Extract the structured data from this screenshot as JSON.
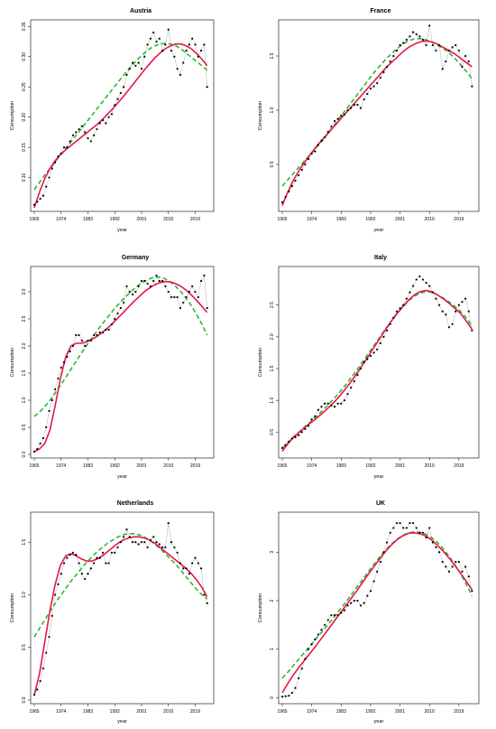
{
  "colors": {
    "fit_line": "#e8154b",
    "smooth_line": "#2db82d",
    "points": "#000000",
    "thin_line": "#b0b0b0"
  },
  "chart_data": [
    {
      "type": "scatter",
      "title": "Austria",
      "xlabel": "year",
      "ylabel": "Consumption",
      "xlim": [
        1965,
        2024
      ],
      "ylim": [
        0.05,
        0.355
      ],
      "xticks": [
        1965,
        1974,
        1983,
        1992,
        2001,
        2010,
        2019
      ],
      "yticks": [
        0.1,
        0.15,
        0.2,
        0.25,
        0.3,
        0.35
      ],
      "ytick_labels": [
        "0.10",
        "0.15",
        "0.20",
        "0.25",
        "0.30",
        "0.35"
      ],
      "x": [
        1965,
        1966,
        1967,
        1968,
        1969,
        1970,
        1971,
        1972,
        1973,
        1974,
        1975,
        1976,
        1977,
        1978,
        1979,
        1980,
        1981,
        1982,
        1983,
        1984,
        1985,
        1986,
        1987,
        1988,
        1989,
        1990,
        1991,
        1992,
        1993,
        1994,
        1995,
        1996,
        1997,
        1998,
        1999,
        2000,
        2001,
        2002,
        2003,
        2004,
        2005,
        2006,
        2007,
        2008,
        2009,
        2010,
        2011,
        2012,
        2013,
        2014,
        2015,
        2016,
        2017,
        2018,
        2019,
        2020,
        2021,
        2022,
        2023
      ],
      "y": [
        0.055,
        0.06,
        0.065,
        0.07,
        0.085,
        0.1,
        0.115,
        0.125,
        0.135,
        0.14,
        0.15,
        0.15,
        0.16,
        0.17,
        0.175,
        0.18,
        0.185,
        0.175,
        0.165,
        0.16,
        0.17,
        0.18,
        0.19,
        0.195,
        0.19,
        0.2,
        0.205,
        0.22,
        0.23,
        0.24,
        0.25,
        0.27,
        0.28,
        0.29,
        0.285,
        0.29,
        0.28,
        0.3,
        0.32,
        0.33,
        0.34,
        0.325,
        0.33,
        0.31,
        0.32,
        0.345,
        0.31,
        0.3,
        0.28,
        0.27,
        0.29,
        0.31,
        0.32,
        0.33,
        0.32,
        0.3,
        0.31,
        0.32,
        0.25
      ],
      "fit_y": [
        0.05,
        0.076,
        0.098,
        0.115,
        0.128,
        0.138,
        0.146,
        0.153,
        0.16,
        0.167,
        0.174,
        0.181,
        0.188,
        0.196,
        0.205,
        0.214,
        0.224,
        0.234,
        0.245,
        0.256,
        0.267,
        0.278,
        0.288,
        0.298,
        0.306,
        0.313,
        0.318,
        0.321,
        0.321,
        0.318,
        0.313,
        0.305,
        0.296,
        0.285
      ],
      "smooth_y": [
        0.08,
        0.092,
        0.104,
        0.115,
        0.126,
        0.137,
        0.148,
        0.159,
        0.17,
        0.181,
        0.192,
        0.203,
        0.214,
        0.225,
        0.236,
        0.247,
        0.258,
        0.269,
        0.279,
        0.289,
        0.298,
        0.306,
        0.313,
        0.318,
        0.321,
        0.322,
        0.321,
        0.318,
        0.313,
        0.306,
        0.299,
        0.292,
        0.285,
        0.278
      ]
    },
    {
      "type": "scatter",
      "title": "France",
      "xlabel": "year",
      "ylabel": "Consumption",
      "xlim": [
        1965,
        2024
      ],
      "ylim": [
        0.1,
        1.8
      ],
      "xticks": [
        1965,
        1974,
        1983,
        1992,
        2001,
        2010,
        2019
      ],
      "yticks": [
        0.5,
        1.0,
        1.5
      ],
      "ytick_labels": [
        "0.5",
        "1.0",
        "1.5"
      ],
      "x": [
        1965,
        1966,
        1967,
        1968,
        1969,
        1970,
        1971,
        1972,
        1973,
        1974,
        1975,
        1976,
        1977,
        1978,
        1979,
        1980,
        1981,
        1982,
        1983,
        1984,
        1985,
        1986,
        1987,
        1988,
        1989,
        1990,
        1991,
        1992,
        1993,
        1994,
        1995,
        1996,
        1997,
        1998,
        1999,
        2000,
        2001,
        2002,
        2003,
        2004,
        2005,
        2006,
        2007,
        2008,
        2009,
        2010,
        2011,
        2012,
        2013,
        2014,
        2015,
        2016,
        2017,
        2018,
        2019,
        2020,
        2021,
        2022,
        2023
      ],
      "y": [
        0.15,
        0.2,
        0.25,
        0.3,
        0.35,
        0.4,
        0.45,
        0.5,
        0.55,
        0.6,
        0.62,
        0.68,
        0.72,
        0.75,
        0.8,
        0.85,
        0.9,
        0.92,
        0.95,
        0.96,
        1.0,
        1.02,
        1.05,
        1.05,
        1.02,
        1.1,
        1.15,
        1.2,
        1.22,
        1.25,
        1.3,
        1.35,
        1.4,
        1.45,
        1.5,
        1.55,
        1.6,
        1.62,
        1.65,
        1.68,
        1.72,
        1.7,
        1.68,
        1.65,
        1.6,
        1.78,
        1.6,
        1.55,
        1.6,
        1.38,
        1.45,
        1.55,
        1.58,
        1.6,
        1.55,
        1.4,
        1.5,
        1.45,
        1.22
      ],
      "fit_y": [
        0.12,
        0.25,
        0.36,
        0.45,
        0.53,
        0.6,
        0.67,
        0.73,
        0.79,
        0.85,
        0.91,
        0.97,
        1.03,
        1.09,
        1.15,
        1.21,
        1.27,
        1.33,
        1.39,
        1.44,
        1.49,
        1.54,
        1.58,
        1.61,
        1.63,
        1.64,
        1.63,
        1.61,
        1.58,
        1.55,
        1.52,
        1.48,
        1.44,
        1.4
      ],
      "smooth_y": [
        0.3,
        0.36,
        0.42,
        0.48,
        0.54,
        0.6,
        0.66,
        0.72,
        0.79,
        0.86,
        0.93,
        1.0,
        1.07,
        1.14,
        1.21,
        1.28,
        1.35,
        1.41,
        1.47,
        1.52,
        1.57,
        1.61,
        1.64,
        1.66,
        1.66,
        1.65,
        1.63,
        1.6,
        1.57,
        1.53,
        1.48,
        1.42,
        1.36,
        1.29
      ]
    },
    {
      "type": "scatter",
      "title": "Germany",
      "xlabel": "year",
      "ylabel": "Consumption",
      "xlim": [
        1965,
        2024
      ],
      "ylim": [
        0.0,
        3.4
      ],
      "xticks": [
        1965,
        1974,
        1983,
        1992,
        2001,
        2010,
        2019
      ],
      "yticks": [
        0.0,
        0.5,
        1.0,
        1.5,
        2.0,
        2.5,
        3.0
      ],
      "ytick_labels": [
        "0.0",
        "0.5",
        "1.0",
        "1.5",
        "2.0",
        "2.5",
        "3.0"
      ],
      "x": [
        1965,
        1966,
        1967,
        1968,
        1969,
        1970,
        1971,
        1972,
        1973,
        1974,
        1975,
        1976,
        1977,
        1978,
        1979,
        1980,
        1981,
        1982,
        1983,
        1984,
        1985,
        1986,
        1987,
        1988,
        1989,
        1990,
        1991,
        1992,
        1993,
        1994,
        1995,
        1996,
        1997,
        1998,
        1999,
        2000,
        2001,
        2002,
        2003,
        2004,
        2005,
        2006,
        2007,
        2008,
        2009,
        2010,
        2011,
        2012,
        2013,
        2014,
        2015,
        2016,
        2017,
        2018,
        2019,
        2020,
        2021,
        2022,
        2023
      ],
      "y": [
        0.05,
        0.1,
        0.2,
        0.3,
        0.5,
        0.8,
        1.0,
        1.2,
        1.4,
        1.6,
        1.7,
        1.8,
        1.9,
        2.0,
        2.2,
        2.2,
        2.1,
        2.0,
        2.1,
        2.1,
        2.2,
        2.2,
        2.25,
        2.25,
        2.3,
        2.3,
        2.4,
        2.5,
        2.6,
        2.7,
        2.8,
        3.1,
        3.0,
        2.95,
        3.0,
        3.1,
        3.2,
        3.2,
        3.15,
        3.1,
        3.2,
        3.3,
        3.2,
        3.2,
        3.1,
        3.0,
        2.9,
        2.9,
        2.9,
        2.7,
        2.8,
        2.9,
        3.0,
        3.1,
        3.0,
        2.9,
        3.2,
        3.3,
        2.7
      ],
      "fit_y": [
        0.05,
        0.1,
        0.2,
        0.45,
        0.9,
        1.4,
        1.8,
        2.0,
        2.05,
        2.05,
        2.08,
        2.12,
        2.18,
        2.25,
        2.33,
        2.42,
        2.52,
        2.62,
        2.72,
        2.82,
        2.91,
        3.0,
        3.07,
        3.13,
        3.17,
        3.19,
        3.18,
        3.15,
        3.1,
        3.03,
        2.94,
        2.84,
        2.73,
        2.62
      ],
      "smooth_y": [
        0.7,
        0.78,
        0.88,
        1.0,
        1.13,
        1.27,
        1.42,
        1.57,
        1.72,
        1.87,
        2.01,
        2.15,
        2.28,
        2.41,
        2.53,
        2.65,
        2.76,
        2.87,
        2.96,
        3.05,
        3.13,
        3.19,
        3.24,
        3.27,
        3.27,
        3.24,
        3.18,
        3.1,
        3.0,
        2.88,
        2.74,
        2.58,
        2.4,
        2.2
      ]
    },
    {
      "type": "scatter",
      "title": "Italy",
      "xlabel": "year",
      "ylabel": "Consumption",
      "xlim": [
        1965,
        2024
      ],
      "ylim": [
        0.15,
        3.05
      ],
      "xticks": [
        1965,
        1974,
        1983,
        1992,
        2001,
        2010,
        2019
      ],
      "yticks": [
        0.5,
        1.0,
        1.5,
        2.0,
        2.5
      ],
      "ytick_labels": [
        "0.5",
        "1.0",
        "1.5",
        "2.0",
        "2.5"
      ],
      "x": [
        1965,
        1966,
        1967,
        1968,
        1969,
        1970,
        1971,
        1972,
        1973,
        1974,
        1975,
        1976,
        1977,
        1978,
        1979,
        1980,
        1981,
        1982,
        1983,
        1984,
        1985,
        1986,
        1987,
        1988,
        1989,
        1990,
        1991,
        1992,
        1993,
        1994,
        1995,
        1996,
        1997,
        1998,
        1999,
        2000,
        2001,
        2002,
        2003,
        2004,
        2005,
        2006,
        2007,
        2008,
        2009,
        2010,
        2011,
        2012,
        2013,
        2014,
        2015,
        2016,
        2017,
        2018,
        2019,
        2020,
        2021,
        2022,
        2023
      ],
      "y": [
        0.25,
        0.3,
        0.35,
        0.4,
        0.42,
        0.45,
        0.5,
        0.55,
        0.6,
        0.7,
        0.75,
        0.85,
        0.9,
        0.95,
        0.95,
        0.92,
        0.9,
        0.95,
        0.95,
        1.0,
        1.1,
        1.2,
        1.3,
        1.4,
        1.5,
        1.6,
        1.65,
        1.7,
        1.75,
        1.8,
        1.9,
        2.0,
        2.1,
        2.2,
        2.3,
        2.4,
        2.45,
        2.5,
        2.6,
        2.7,
        2.8,
        2.9,
        2.95,
        2.9,
        2.85,
        2.8,
        2.7,
        2.6,
        2.5,
        2.4,
        2.35,
        2.15,
        2.2,
        2.4,
        2.5,
        2.55,
        2.6,
        2.4,
        2.1
      ],
      "fit_y": [
        0.2,
        0.32,
        0.42,
        0.5,
        0.58,
        0.65,
        0.72,
        0.8,
        0.88,
        0.97,
        1.07,
        1.18,
        1.3,
        1.43,
        1.56,
        1.7,
        1.84,
        1.98,
        2.12,
        2.25,
        2.37,
        2.48,
        2.58,
        2.66,
        2.71,
        2.73,
        2.71,
        2.66,
        2.6,
        2.53,
        2.45,
        2.37,
        2.25,
        2.12
      ],
      "smooth_y": [
        0.25,
        0.34,
        0.43,
        0.51,
        0.59,
        0.67,
        0.75,
        0.84,
        0.93,
        1.03,
        1.13,
        1.24,
        1.36,
        1.48,
        1.61,
        1.74,
        1.87,
        2.0,
        2.13,
        2.25,
        2.37,
        2.47,
        2.57,
        2.64,
        2.69,
        2.71,
        2.7,
        2.66,
        2.61,
        2.55,
        2.48,
        2.4,
        2.3,
        2.17
      ]
    },
    {
      "type": "scatter",
      "title": "Netherlands",
      "xlabel": "year",
      "ylabel": "Consumption",
      "xlim": [
        1965,
        2024
      ],
      "ylim": [
        0.0,
        1.75
      ],
      "xticks": [
        1965,
        1974,
        1983,
        1992,
        2001,
        2010,
        2019
      ],
      "yticks": [
        0.0,
        0.5,
        1.0,
        1.5
      ],
      "ytick_labels": [
        "0.0",
        "0.5",
        "1.0",
        "1.5"
      ],
      "x": [
        1965,
        1966,
        1967,
        1968,
        1969,
        1970,
        1971,
        1972,
        1973,
        1974,
        1975,
        1976,
        1977,
        1978,
        1979,
        1980,
        1981,
        1982,
        1983,
        1984,
        1985,
        1986,
        1987,
        1988,
        1989,
        1990,
        1991,
        1992,
        1993,
        1994,
        1995,
        1996,
        1997,
        1998,
        1999,
        2000,
        2001,
        2002,
        2003,
        2004,
        2005,
        2006,
        2007,
        2008,
        2009,
        2010,
        2011,
        2012,
        2013,
        2014,
        2015,
        2016,
        2017,
        2018,
        2019,
        2020,
        2021,
        2022,
        2023
      ],
      "y": [
        0.05,
        0.1,
        0.18,
        0.3,
        0.45,
        0.6,
        0.8,
        1.0,
        1.1,
        1.2,
        1.3,
        1.35,
        1.38,
        1.4,
        1.38,
        1.3,
        1.2,
        1.15,
        1.2,
        1.25,
        1.3,
        1.35,
        1.35,
        1.4,
        1.3,
        1.3,
        1.4,
        1.4,
        1.45,
        1.5,
        1.55,
        1.62,
        1.55,
        1.5,
        1.5,
        1.48,
        1.5,
        1.5,
        1.45,
        1.52,
        1.55,
        1.5,
        1.48,
        1.45,
        1.45,
        1.68,
        1.5,
        1.45,
        1.4,
        1.3,
        1.25,
        1.25,
        1.2,
        1.3,
        1.35,
        1.3,
        1.25,
        1.0,
        0.92
      ],
      "fit_y": [
        0.05,
        0.25,
        0.55,
        0.85,
        1.1,
        1.28,
        1.37,
        1.39,
        1.37,
        1.34,
        1.32,
        1.32,
        1.34,
        1.37,
        1.41,
        1.45,
        1.49,
        1.52,
        1.54,
        1.55,
        1.55,
        1.54,
        1.52,
        1.49,
        1.45,
        1.41,
        1.37,
        1.33,
        1.29,
        1.25,
        1.2,
        1.14,
        1.07,
        0.98
      ],
      "smooth_y": [
        0.6,
        0.68,
        0.76,
        0.84,
        0.92,
        0.99,
        1.06,
        1.13,
        1.19,
        1.25,
        1.31,
        1.36,
        1.41,
        1.45,
        1.49,
        1.52,
        1.55,
        1.57,
        1.58,
        1.58,
        1.57,
        1.55,
        1.52,
        1.48,
        1.44,
        1.39,
        1.34,
        1.29,
        1.23,
        1.17,
        1.11,
        1.05,
        1.0,
        0.96
      ]
    },
    {
      "type": "scatter",
      "title": "UK",
      "xlabel": "year",
      "ylabel": "Consumption",
      "xlim": [
        1965,
        2024
      ],
      "ylim": [
        -0.05,
        3.75
      ],
      "xticks": [
        1965,
        1974,
        1983,
        1992,
        2001,
        2010,
        2019
      ],
      "yticks": [
        0,
        1,
        2,
        3
      ],
      "ytick_labels": [
        "0",
        "1",
        "2",
        "3"
      ],
      "x": [
        1965,
        1966,
        1967,
        1968,
        1969,
        1970,
        1971,
        1972,
        1973,
        1974,
        1975,
        1976,
        1977,
        1978,
        1979,
        1980,
        1981,
        1982,
        1983,
        1984,
        1985,
        1986,
        1987,
        1988,
        1989,
        1990,
        1991,
        1992,
        1993,
        1994,
        1995,
        1996,
        1997,
        1998,
        1999,
        2000,
        2001,
        2002,
        2003,
        2004,
        2005,
        2006,
        2007,
        2008,
        2009,
        2010,
        2011,
        2012,
        2013,
        2014,
        2015,
        2016,
        2017,
        2018,
        2019,
        2020,
        2021,
        2022,
        2023
      ],
      "y": [
        0.02,
        0.03,
        0.04,
        0.1,
        0.2,
        0.4,
        0.6,
        0.8,
        1.0,
        1.1,
        1.2,
        1.3,
        1.4,
        1.5,
        1.6,
        1.7,
        1.7,
        1.7,
        1.75,
        1.8,
        1.9,
        1.95,
        2.0,
        2.0,
        1.9,
        1.95,
        2.1,
        2.2,
        2.4,
        2.6,
        2.8,
        3.0,
        3.2,
        3.4,
        3.5,
        3.6,
        3.6,
        3.5,
        3.5,
        3.6,
        3.6,
        3.5,
        3.4,
        3.4,
        3.3,
        3.5,
        3.2,
        3.1,
        3.0,
        2.8,
        2.7,
        2.6,
        2.7,
        2.8,
        2.8,
        2.6,
        2.7,
        2.5,
        2.2
      ],
      "fit_y": [
        0.1,
        0.3,
        0.48,
        0.64,
        0.79,
        0.94,
        1.09,
        1.25,
        1.41,
        1.57,
        1.73,
        1.89,
        2.05,
        2.21,
        2.38,
        2.55,
        2.71,
        2.87,
        3.02,
        3.15,
        3.26,
        3.34,
        3.39,
        3.4,
        3.38,
        3.33,
        3.25,
        3.14,
        3.02,
        2.88,
        2.73,
        2.57,
        2.4,
        2.22
      ],
      "smooth_y": [
        0.4,
        0.53,
        0.67,
        0.81,
        0.95,
        1.09,
        1.23,
        1.37,
        1.51,
        1.66,
        1.81,
        1.96,
        2.12,
        2.28,
        2.44,
        2.6,
        2.76,
        2.91,
        3.05,
        3.17,
        3.27,
        3.35,
        3.4,
        3.42,
        3.41,
        3.37,
        3.3,
        3.2,
        3.07,
        2.92,
        2.75,
        2.56,
        2.34,
        2.1
      ]
    }
  ]
}
